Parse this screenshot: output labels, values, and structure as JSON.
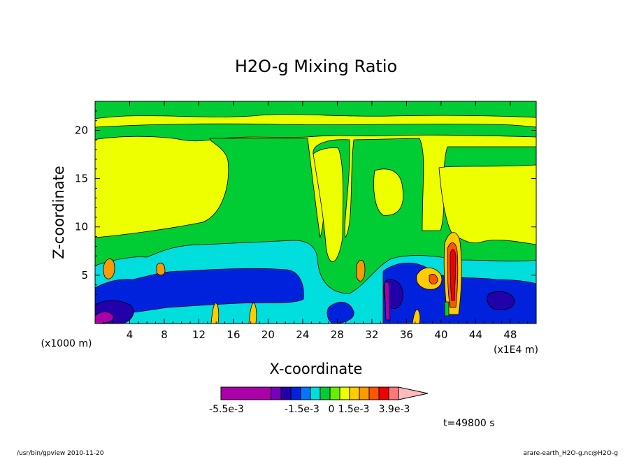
{
  "chart_data": {
    "type": "heatmap",
    "title": "H2O-g Mixing Ratio",
    "xlabel": "X-coordinate",
    "ylabel": "Z-coordinate",
    "x_unit": "(x1E4 m)",
    "y_unit": "(x1000 m)",
    "xlim": [
      0,
      51
    ],
    "ylim": [
      0,
      23
    ],
    "x_ticks": [
      "4",
      "8",
      "12",
      "16",
      "20",
      "24",
      "28",
      "32",
      "36",
      "40",
      "44",
      "48"
    ],
    "y_ticks": [
      "5",
      "10",
      "15",
      "20"
    ],
    "legend": {
      "colors": [
        "#aa00aa",
        "#7700bb",
        "#2200aa",
        "#0022dd",
        "#0077ff",
        "#00dddd",
        "#00cc33",
        "#66ee00",
        "#eeff00",
        "#ffcc00",
        "#ff9900",
        "#ff5500",
        "#ee0000",
        "#ff7777",
        "#ffbbbb"
      ],
      "labels": [
        "-5.5e-3",
        "-1.5e-3",
        "0",
        "1.5e-3",
        "3.9e-3"
      ]
    },
    "time_label": "t=49800 s",
    "grid": false
  },
  "footer": {
    "left": "/usr/bin/gpview   2010-11-20",
    "right": "arare-earth_H2O-g.nc@H2O-g"
  }
}
